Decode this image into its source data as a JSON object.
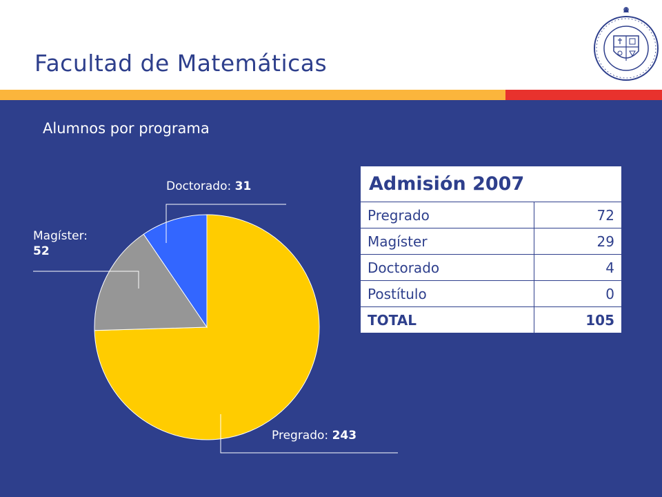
{
  "title": "Facultad de Matemáticas",
  "subtitle": "Alumnos por programa",
  "colors": {
    "background": "#2e3f8c",
    "header_bg": "#ffffff",
    "bar_orange": "#fbb53c",
    "bar_red": "#e8322d"
  },
  "seal": {
    "icon": "university-seal-icon",
    "text": "PONTIFICIA UNIVERSIDAD CATÓLICA DE CHILE"
  },
  "chart_data": {
    "type": "pie",
    "title": "",
    "start_angle_deg": 0,
    "direction": "clockwise",
    "slices": [
      {
        "name": "Pregrado",
        "value": 243,
        "color": "#ffcc00"
      },
      {
        "name": "Magíster",
        "value": 52,
        "color": "#969696"
      },
      {
        "name": "Doctorado",
        "value": 31,
        "color": "#3366ff"
      }
    ],
    "labels": [
      {
        "name": "Doctorado",
        "sep": ": ",
        "value": "31"
      },
      {
        "name": "Magíster",
        "sep": ":",
        "value": "52"
      },
      {
        "name": "Pregrado",
        "sep": ": ",
        "value": "243"
      }
    ]
  },
  "table": {
    "header": "Admisión 2007",
    "rows": [
      {
        "label": "Pregrado",
        "value": "72"
      },
      {
        "label": "Magíster",
        "value": "29"
      },
      {
        "label": "Doctorado",
        "value": "4"
      },
      {
        "label": "Postítulo",
        "value": "0"
      }
    ],
    "total": {
      "label": "TOTAL",
      "value": "105"
    }
  }
}
